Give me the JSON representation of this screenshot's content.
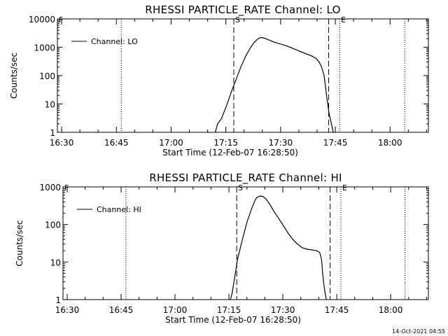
{
  "chart_data": [
    {
      "type": "line",
      "title": "RHESSI PARTICLE_RATE Channel: LO",
      "xlabel": "Start Time (12-Feb-07 16:28:50)",
      "ylabel": "Counts/sec",
      "yscale": "log",
      "ylim": [
        1,
        10000
      ],
      "yticks": [
        1,
        10,
        100,
        1000,
        10000
      ],
      "yticklabels": [
        "1",
        "10",
        "100",
        "1000",
        "10000"
      ],
      "xlim": [
        "16:28:50",
        "18:10:30"
      ],
      "xticks": [
        "16:30",
        "16:45",
        "17:00",
        "17:15",
        "17:30",
        "17:45",
        "18:00"
      ],
      "legend": {
        "position": "top-left",
        "entries": [
          "Channel: LO"
        ]
      },
      "series": [
        {
          "name": "Channel: LO",
          "x": [
            "17:12:05",
            "17:12:45",
            "17:13:45",
            "17:15:05",
            "17:16:25",
            "17:17:45",
            "17:19:05",
            "17:20:25",
            "17:21:35",
            "17:22:45",
            "17:23:25",
            "17:24:05",
            "17:24:35",
            "17:25:15",
            "17:26:25",
            "17:27:45",
            "17:29:05",
            "17:30:25",
            "17:31:45",
            "17:33:05",
            "17:34:25",
            "17:35:45",
            "17:37:05",
            "17:38:25",
            "17:39:45",
            "17:40:35",
            "17:41:15",
            "17:41:55",
            "17:42:35",
            "17:43:15",
            "17:43:45",
            "17:44:05",
            "17:44:25"
          ],
          "y": [
            1,
            2,
            3,
            8,
            25,
            70,
            200,
            480,
            900,
            1500,
            1800,
            2100,
            2200,
            2150,
            1900,
            1600,
            1400,
            1250,
            1100,
            950,
            800,
            680,
            580,
            500,
            400,
            300,
            200,
            100,
            20,
            5,
            2.5,
            1.6,
            1
          ]
        }
      ],
      "vertical_lines": [
        {
          "x": "16:46:20",
          "style": "dotted",
          "label": ""
        },
        {
          "x": "17:17:10",
          "style": "dashed",
          "label": "S"
        },
        {
          "x": "17:43:10",
          "style": "dashed",
          "label": ""
        },
        {
          "x": "17:46:10",
          "style": "dotted",
          "label": "E"
        },
        {
          "x": "18:04:00",
          "style": "dotted",
          "label": ""
        },
        {
          "x": "16:28:50",
          "style": "none",
          "label": "F"
        }
      ]
    },
    {
      "type": "line",
      "title": "RHESSI PARTICLE_RATE Channel: HI",
      "xlabel": "Start Time (12-Feb-07 16:28:50)",
      "ylabel": "Counts/sec",
      "yscale": "log",
      "ylim": [
        1,
        1000
      ],
      "yticks": [
        1,
        10,
        100,
        1000
      ],
      "yticklabels": [
        "1",
        "10",
        "100",
        "1000"
      ],
      "xlim": [
        "16:28:50",
        "18:10:30"
      ],
      "xticks": [
        "16:30",
        "16:45",
        "17:00",
        "17:15",
        "17:30",
        "17:45",
        "18:00"
      ],
      "legend": {
        "position": "top-left",
        "entries": [
          "Channel: HI"
        ]
      },
      "series": [
        {
          "name": "Channel: HI",
          "x": [
            "17:15:25",
            "17:15:55",
            "17:16:25",
            "17:17:25",
            "17:18:45",
            "17:20:05",
            "17:21:25",
            "17:22:15",
            "17:22:45",
            "17:23:35",
            "17:24:25",
            "17:25:05",
            "17:25:45",
            "17:26:35",
            "17:27:25",
            "17:28:45",
            "17:30:05",
            "17:31:25",
            "17:32:45",
            "17:34:05",
            "17:35:25",
            "17:36:45",
            "17:38:05",
            "17:39:25",
            "17:40:15",
            "17:40:45",
            "17:41:05",
            "17:41:25",
            "17:41:45",
            "17:42:05"
          ],
          "y": [
            1,
            1.5,
            3,
            12,
            40,
            120,
            280,
            440,
            520,
            570,
            560,
            500,
            420,
            320,
            230,
            150,
            95,
            60,
            40,
            30,
            24,
            22,
            21,
            20,
            18,
            12,
            5,
            2.5,
            1.5,
            1
          ]
        }
      ],
      "vertical_lines": [
        {
          "x": "16:46:20",
          "style": "dotted",
          "label": ""
        },
        {
          "x": "17:17:10",
          "style": "dashed",
          "label": "S"
        },
        {
          "x": "17:43:10",
          "style": "dashed",
          "label": ""
        },
        {
          "x": "17:46:10",
          "style": "dotted",
          "label": "E"
        },
        {
          "x": "18:04:00",
          "style": "dotted",
          "label": ""
        },
        {
          "x": "16:28:50",
          "style": "none",
          "label": "F"
        }
      ]
    }
  ],
  "footer": {
    "timestamp": "14-Oct-2021 04:55"
  }
}
